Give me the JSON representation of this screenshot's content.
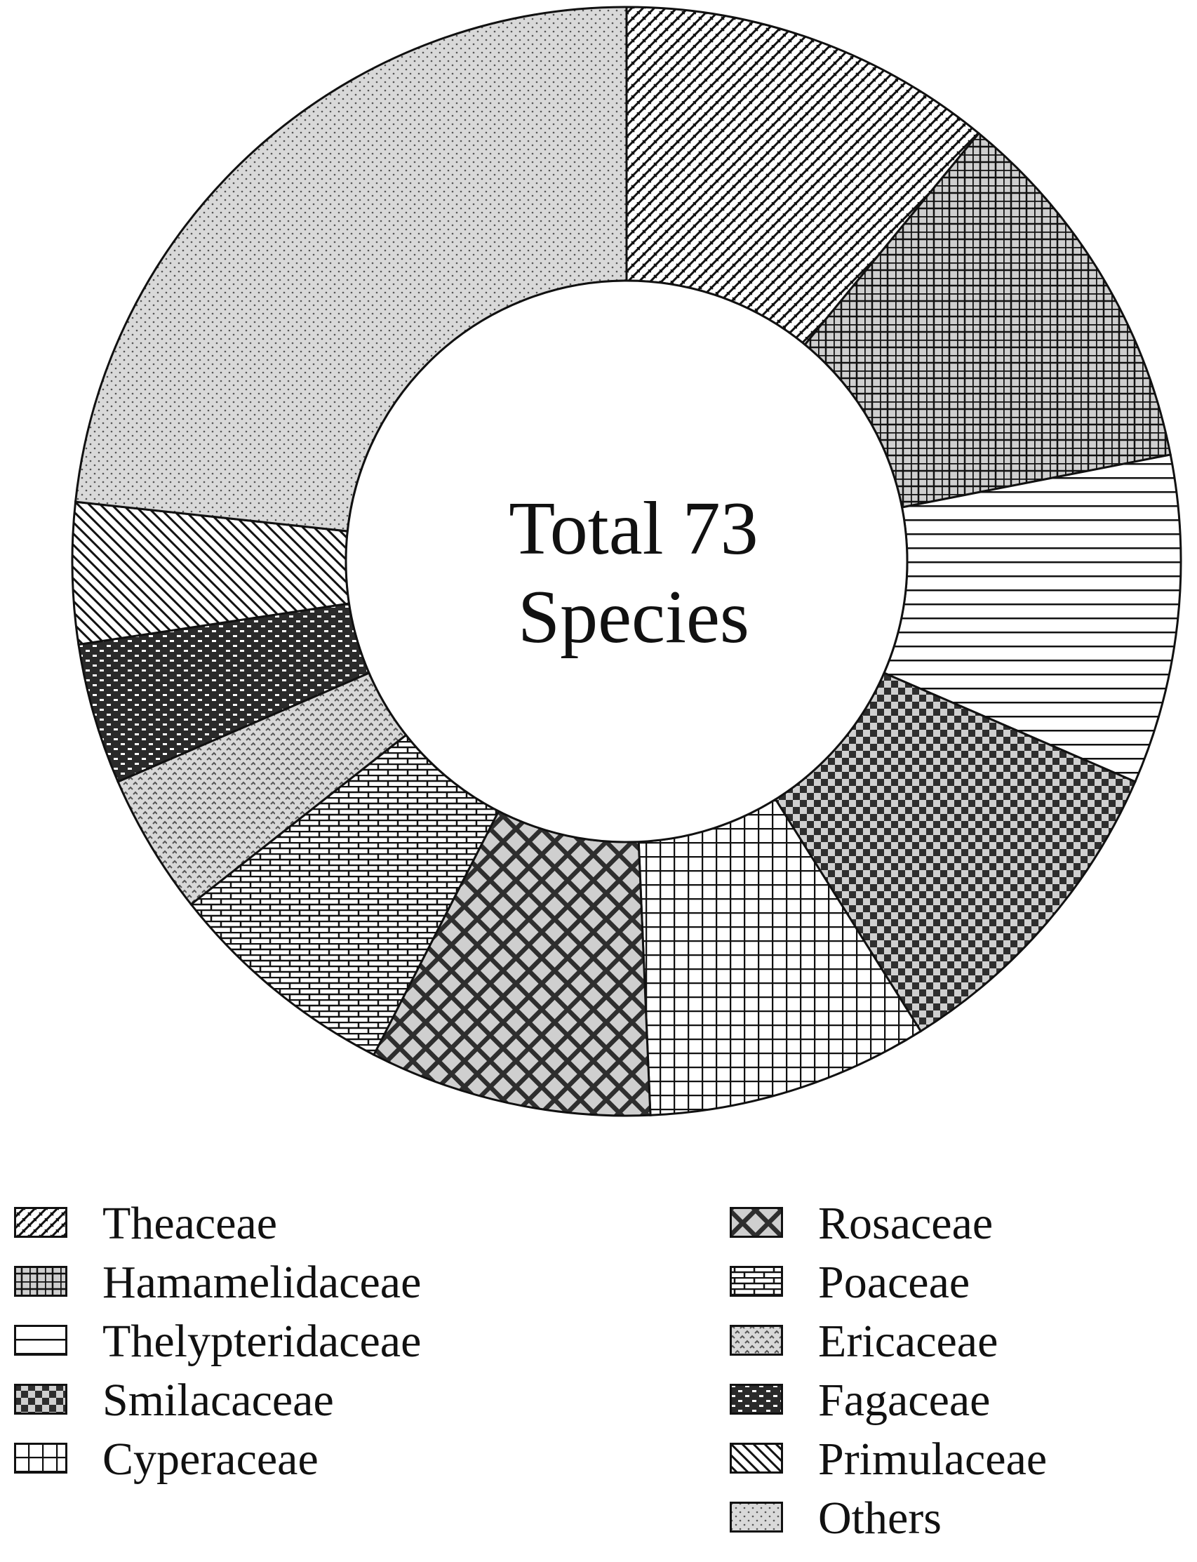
{
  "chart_data": {
    "type": "pie",
    "style": "donut",
    "title": "",
    "center_label": [
      "Total 73",
      "Species"
    ],
    "total_species": 73,
    "legend_position": "bottom",
    "slices": [
      {
        "name": "Theaceae",
        "value": 8,
        "pattern": "diag-brick"
      },
      {
        "name": "Hamamelidaceae",
        "value": 8,
        "pattern": "grid-gray"
      },
      {
        "name": "Thelypteridaceae",
        "value": 7,
        "pattern": "horizontal"
      },
      {
        "name": "Smilacaceae",
        "value": 7,
        "pattern": "checker"
      },
      {
        "name": "Cyperaceae",
        "value": 6,
        "pattern": "grid-white"
      },
      {
        "name": "Rosaceae",
        "value": 6,
        "pattern": "diamond"
      },
      {
        "name": "Poaceae",
        "value": 5,
        "pattern": "brick"
      },
      {
        "name": "Ericaceae",
        "value": 3,
        "pattern": "dots-gray"
      },
      {
        "name": "Fagaceae",
        "value": 3,
        "pattern": "dark-brick"
      },
      {
        "name": "Primulaceae",
        "value": 3,
        "pattern": "back-diagonal"
      },
      {
        "name": "Others",
        "value": 17,
        "pattern": "fine-dots"
      }
    ],
    "legend_labels": [
      "Theaceae",
      "Hamamelidaceae",
      "Thelypteridaceae",
      "Smilacaceae",
      "Cyperaceae",
      "Rosaceae",
      "Poaceae",
      "Ericaceae",
      "Fagaceae",
      "Primulaceae",
      "Others"
    ],
    "colors": {
      "ink": "#111111",
      "gray_fill": "#cfcfcf",
      "dark_fill": "#3a3a3a",
      "background": "#ffffff"
    }
  }
}
